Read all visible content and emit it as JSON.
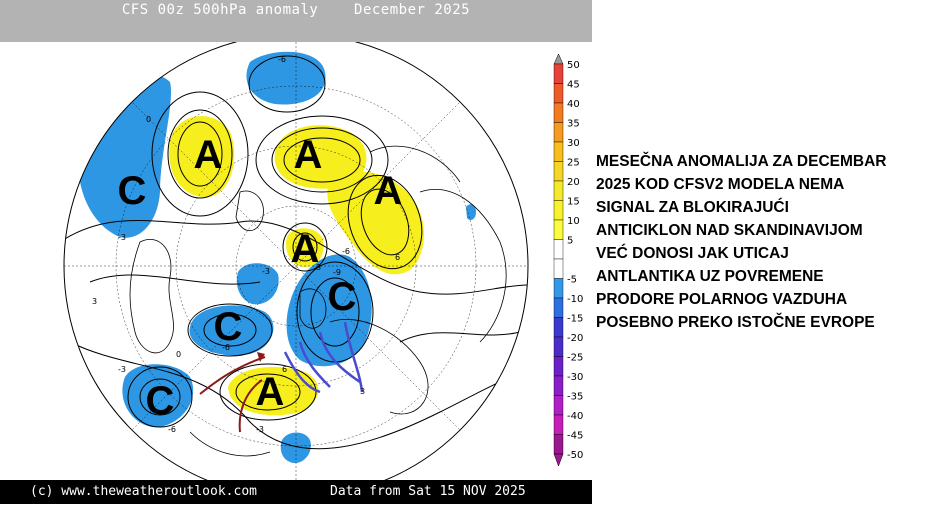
{
  "header": {
    "title": "CFS 00z 500hPa anomaly    December 2025"
  },
  "footer": {
    "copyright": "(c) www.theweatheroutlook.com",
    "data_date": "Data from Sat 15 NOV 2025"
  },
  "colorbar": {
    "levels": [
      50,
      45,
      40,
      35,
      30,
      25,
      20,
      15,
      10,
      5,
      -5,
      -10,
      -15,
      -20,
      -25,
      -30,
      -35,
      -40,
      -45,
      -50
    ],
    "labels": [
      "50",
      "45",
      "40",
      "35",
      "30",
      "25",
      "20",
      "15",
      "10",
      "5",
      "-5",
      "-10",
      "-15",
      "-20",
      "-25",
      "-30",
      "-35",
      "-40",
      "-45",
      "-50"
    ],
    "colors": [
      "#e8413a",
      "#ef5a2b",
      "#f47a22",
      "#f59c1e",
      "#f7be1e",
      "#f5d624",
      "#f6e82a",
      "#f8f22e",
      "#fbfb40",
      "#ffffff",
      "#ffffff",
      "#3399e6",
      "#2d6fe0",
      "#3a3ad1",
      "#4b2cc8",
      "#6a22c8",
      "#8a1ec8",
      "#b01ec8",
      "#c81eb8",
      "#9b1890"
    ],
    "top_color": "#9a9a9a"
  },
  "map": {
    "anomaly_labels": [
      {
        "label": "C",
        "kind": "low"
      },
      {
        "label": "A",
        "kind": "high"
      },
      {
        "label": "A",
        "kind": "high"
      },
      {
        "label": "A",
        "kind": "high"
      },
      {
        "label": "A",
        "kind": "high"
      },
      {
        "label": "C",
        "kind": "low"
      },
      {
        "label": "C",
        "kind": "low"
      },
      {
        "label": "C",
        "kind": "low"
      },
      {
        "label": "A",
        "kind": "high"
      }
    ],
    "contour_values": [
      "-6",
      "-6",
      "-6",
      "-6",
      "-9",
      "-3",
      "6",
      "3",
      "-3",
      "6",
      "3",
      "0",
      "-3",
      "-3",
      "3",
      "0"
    ],
    "colors": {
      "positive": "#f7ee1d",
      "negative": "#2e97e4",
      "arrow_warm": "#8b1a1a",
      "arrow_cold": "#4a4ad0"
    }
  },
  "caption": {
    "lines": [
      "MESEČNA ANOMALIJA ZA DECEMBAR",
      "2025 KOD CFSV2 MODELA NEMA",
      "SIGNAL ZA BLOKIRAJUĆI",
      "ANTICIKLON NAD SKANDINAVIJOM",
      "VEĆ DONOSI JAK UTICAJ",
      "ANTLANTIKA UZ POVREMENE",
      "PRODORE POLARNOG VAZDUHA",
      "POSEBNO PREKO ISTOČNE EVROPE"
    ]
  }
}
